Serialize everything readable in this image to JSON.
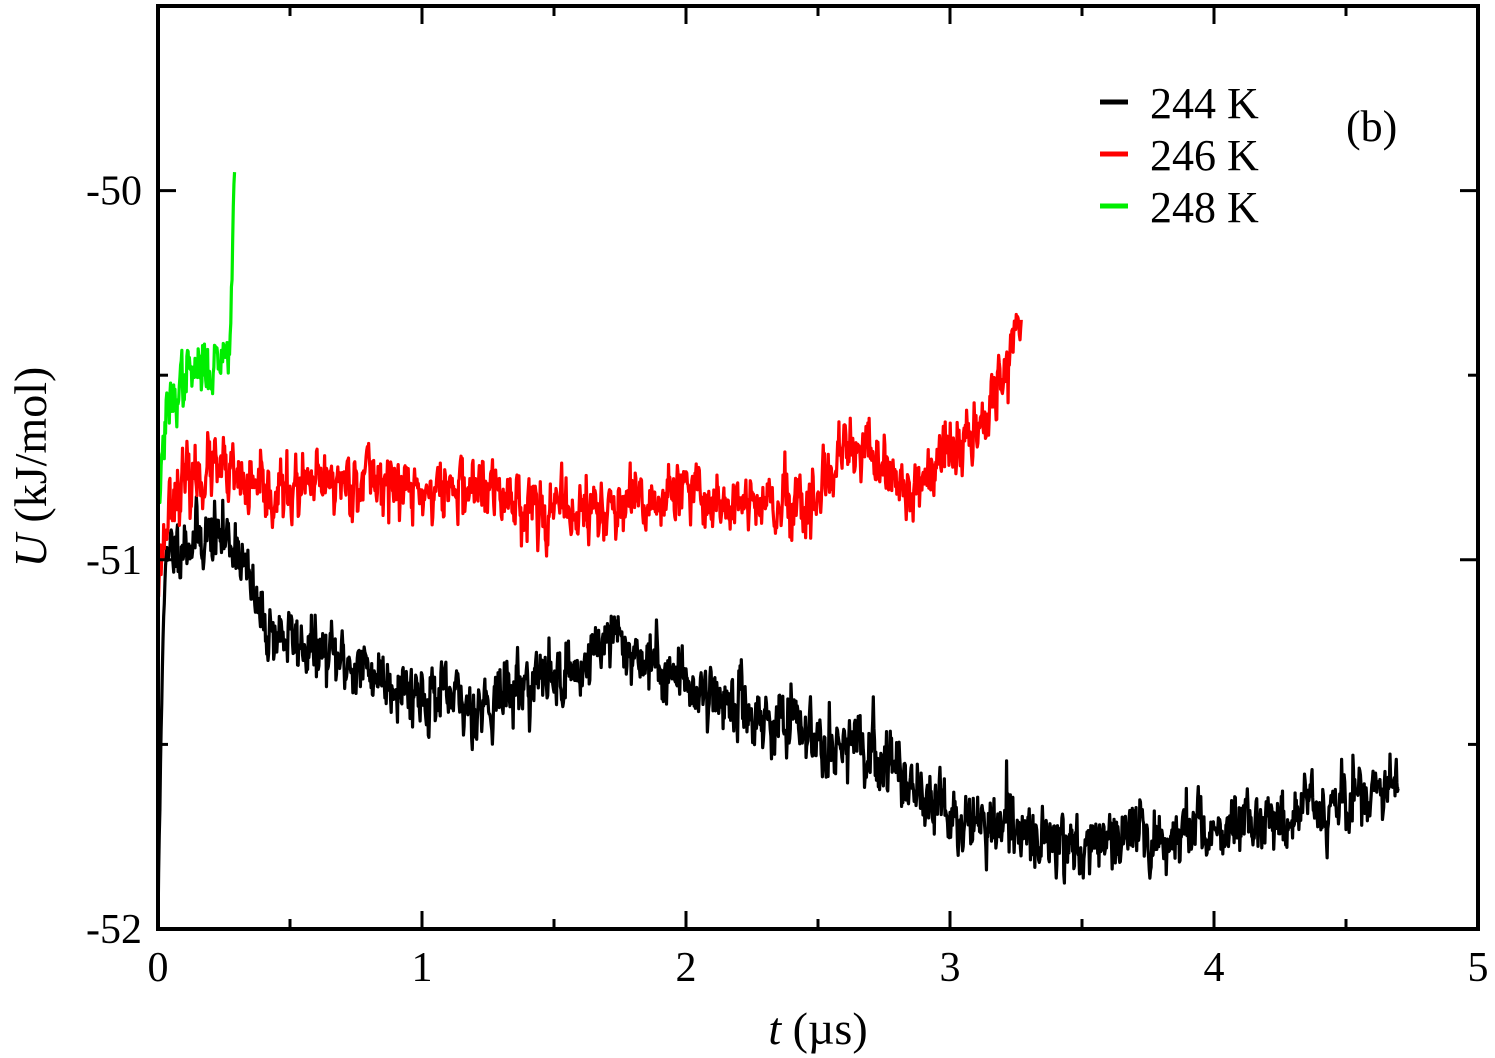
{
  "chart_data": {
    "type": "line",
    "panel_label": "(b)",
    "xlabel": {
      "var": "t",
      "unit": " (µs)"
    },
    "ylabel": {
      "var": "U",
      "unit": " (kJ/mol)"
    },
    "xlim": [
      0,
      5
    ],
    "ylim": [
      -52,
      -49.5
    ],
    "xticks": [
      0,
      1,
      2,
      3,
      4,
      5
    ],
    "yticks": [
      -52,
      -51,
      -50
    ],
    "y_minor_ticks": [
      -51.5,
      -50.5
    ],
    "x_minor_ticks": [
      0.5,
      1.5,
      2.5,
      3.5,
      4.5
    ],
    "legend_position": "top-right",
    "series": [
      {
        "name": "244 K",
        "color": "#000000",
        "t_start": 0.0,
        "t_end": 4.7,
        "noise": 0.07,
        "seed": 11,
        "points": [
          [
            0.0,
            -52.0
          ],
          [
            0.02,
            -51.1
          ],
          [
            0.05,
            -50.97
          ],
          [
            0.1,
            -50.95
          ],
          [
            0.2,
            -50.93
          ],
          [
            0.3,
            -50.95
          ],
          [
            0.35,
            -51.08
          ],
          [
            0.4,
            -51.18
          ],
          [
            0.6,
            -51.25
          ],
          [
            0.8,
            -51.3
          ],
          [
            1.0,
            -51.36
          ],
          [
            1.2,
            -51.4
          ],
          [
            1.4,
            -51.33
          ],
          [
            1.6,
            -51.3
          ],
          [
            1.7,
            -51.2
          ],
          [
            1.8,
            -51.25
          ],
          [
            2.0,
            -51.33
          ],
          [
            2.3,
            -51.43
          ],
          [
            2.6,
            -51.5
          ],
          [
            2.8,
            -51.56
          ],
          [
            3.0,
            -51.7
          ],
          [
            3.2,
            -51.73
          ],
          [
            3.5,
            -51.77
          ],
          [
            3.8,
            -51.75
          ],
          [
            4.2,
            -51.7
          ],
          [
            4.5,
            -51.65
          ],
          [
            4.7,
            -51.62
          ]
        ]
      },
      {
        "name": "246 K",
        "color": "#ff0000",
        "t_start": 0.0,
        "t_end": 3.27,
        "noise": 0.07,
        "seed": 23,
        "points": [
          [
            0.0,
            -51.05
          ],
          [
            0.05,
            -50.82
          ],
          [
            0.2,
            -50.75
          ],
          [
            0.4,
            -50.83
          ],
          [
            0.6,
            -50.8
          ],
          [
            0.8,
            -50.77
          ],
          [
            1.0,
            -50.82
          ],
          [
            1.2,
            -50.8
          ],
          [
            1.5,
            -50.87
          ],
          [
            1.8,
            -50.86
          ],
          [
            2.0,
            -50.82
          ],
          [
            2.2,
            -50.85
          ],
          [
            2.5,
            -50.87
          ],
          [
            2.6,
            -50.7
          ],
          [
            2.7,
            -50.72
          ],
          [
            2.85,
            -50.82
          ],
          [
            3.0,
            -50.72
          ],
          [
            3.1,
            -50.63
          ],
          [
            3.2,
            -50.5
          ],
          [
            3.27,
            -50.35
          ]
        ]
      },
      {
        "name": "248 K",
        "color": "#00ee00",
        "t_start": 0.0,
        "t_end": 0.29,
        "noise": 0.06,
        "seed": 37,
        "points": [
          [
            0.0,
            -50.85
          ],
          [
            0.03,
            -50.62
          ],
          [
            0.1,
            -50.5
          ],
          [
            0.2,
            -50.48
          ],
          [
            0.27,
            -50.42
          ],
          [
            0.29,
            -49.95
          ]
        ]
      }
    ]
  }
}
